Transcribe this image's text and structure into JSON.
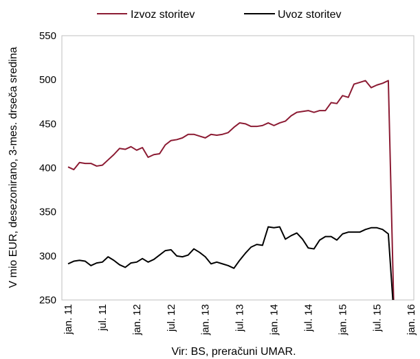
{
  "chart_data": {
    "type": "line",
    "ylabel": "V mio EUR, desezonirano, 3-mes. drseča sredina",
    "xlabel": "Vir: BS, preračuni UMAR.",
    "ylim": [
      250,
      550
    ],
    "yticks": [
      250,
      300,
      350,
      400,
      450,
      500,
      550
    ],
    "x_start": "2011-01",
    "x_end": "2016-01",
    "xticks": [
      "jan. 11",
      "jul. 11",
      "jan. 12",
      "jul. 12",
      "jan. 13",
      "jul. 13",
      "jan. 14",
      "jul. 14",
      "jan. 15",
      "jul. 15",
      "jan. 16"
    ],
    "grid": false,
    "legend_position": "top",
    "series": [
      {
        "name": "Izvoz storitev",
        "color": "#8B1A32",
        "values": [
          401,
          398,
          406,
          405,
          405,
          402,
          403,
          409,
          415,
          422,
          421,
          424,
          420,
          423,
          412,
          415,
          416,
          426,
          431,
          432,
          434,
          438,
          438,
          436,
          434,
          438,
          437,
          438,
          440,
          446,
          451,
          450,
          447,
          447,
          448,
          451,
          448,
          451,
          453,
          459,
          463,
          464,
          465,
          463,
          465,
          465,
          474,
          473,
          482,
          480,
          495,
          497,
          499,
          491,
          494,
          496,
          499,
          230
        ]
      },
      {
        "name": "Uvoz storitev",
        "color": "#000000",
        "values": [
          291,
          294,
          295,
          294,
          289,
          292,
          293,
          299,
          295,
          290,
          287,
          292,
          293,
          297,
          293,
          296,
          301,
          306,
          307,
          300,
          299,
          301,
          308,
          304,
          299,
          291,
          293,
          291,
          289,
          286,
          295,
          303,
          310,
          313,
          312,
          333,
          332,
          333,
          319,
          323,
          326,
          319,
          309,
          308,
          318,
          322,
          322,
          318,
          325,
          327,
          327,
          327,
          330,
          332,
          332,
          330,
          325,
          230
        ]
      }
    ]
  }
}
